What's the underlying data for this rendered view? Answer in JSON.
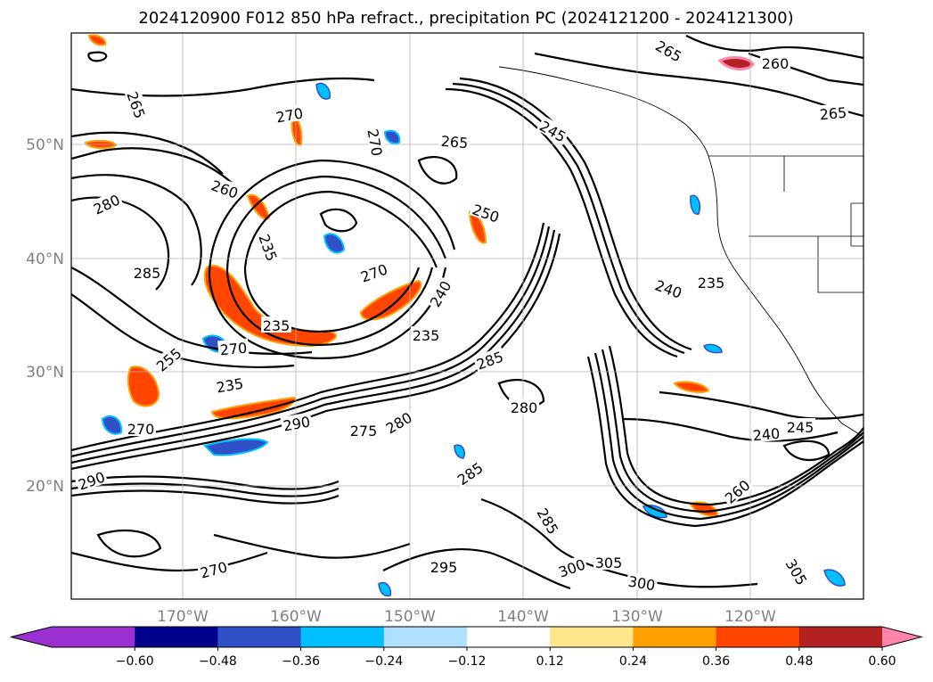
{
  "title": "2024120900 F012 850 hPa refract., precipitation PC (2024121200 - 2024121300)",
  "axes": {
    "lat_labels": [
      "50°N",
      "40°N",
      "30°N",
      "20°N"
    ],
    "lon_labels": [
      "170°W",
      "160°W",
      "150°W",
      "140°W",
      "130°W",
      "120°W"
    ],
    "grid": true
  },
  "colorbar": {
    "ticks": [
      "−0.60",
      "−0.48",
      "−0.36",
      "−0.24",
      "−0.12",
      "0.12",
      "0.24",
      "0.36",
      "0.48",
      "0.60"
    ],
    "under_color": "#9b30d0",
    "colors": [
      "#9b30d0",
      "#00008b",
      "#3050c8",
      "#00bfff",
      "#b0e0ff",
      "#ffffff",
      "#ffe68c",
      "#ff9f00",
      "#ff4500",
      "#b22222",
      "#ff85aa"
    ],
    "extend": "both"
  },
  "contour_labels": [
    "265",
    "270",
    "270",
    "265",
    "265",
    "245",
    "260",
    "265",
    "280",
    "260",
    "285",
    "250",
    "235",
    "270",
    "240",
    "270",
    "235",
    "235",
    "240",
    "235",
    "255",
    "285",
    "270",
    "235",
    "280",
    "275",
    "280",
    "290",
    "285",
    "240",
    "245",
    "260",
    "290",
    "300",
    "305",
    "300",
    "305",
    "285",
    "295",
    "270"
  ]
}
